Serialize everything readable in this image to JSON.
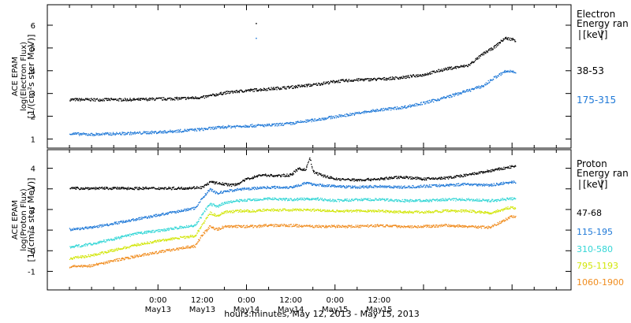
{
  "chart_data": [
    {
      "type": "scatter",
      "panel": "electron",
      "ylabel": [
        "ACE EPAM",
        "log(Electron Flux)",
        "[1/(cm²s ster MeV)]"
      ],
      "ylim": [
        0.6,
        6.9
      ],
      "yticks": [
        "1",
        "2",
        "3",
        "4",
        "5",
        "6"
      ],
      "legend_title": [
        "Electron",
        "Energy ran",
        "[keV]"
      ],
      "series": [
        {
          "name": "38-53",
          "color": "#000000",
          "points": [
            [
              -24,
              2.75
            ],
            [
              -18,
              2.75
            ],
            [
              -12,
              2.75
            ],
            [
              -6,
              2.75
            ],
            [
              0,
              2.78
            ],
            [
              6,
              2.8
            ],
            [
              12,
              2.85
            ],
            [
              18,
              3.05
            ],
            [
              24,
              3.15
            ],
            [
              30,
              3.22
            ],
            [
              36,
              3.3
            ],
            [
              42,
              3.4
            ],
            [
              48,
              3.55
            ],
            [
              54,
              3.62
            ],
            [
              60,
              3.65
            ],
            [
              66,
              3.72
            ],
            [
              72,
              3.85
            ],
            [
              78,
              4.1
            ],
            [
              84,
              4.25
            ],
            [
              88,
              4.75
            ],
            [
              91,
              5.05
            ],
            [
              94,
              5.45
            ],
            [
              96,
              5.4
            ],
            [
              97,
              5.35
            ]
          ]
        },
        {
          "name": "175-315",
          "color": "#1e78d7",
          "points": [
            [
              -24,
              1.25
            ],
            [
              -18,
              1.22
            ],
            [
              -12,
              1.25
            ],
            [
              -6,
              1.28
            ],
            [
              0,
              1.32
            ],
            [
              6,
              1.38
            ],
            [
              12,
              1.45
            ],
            [
              18,
              1.55
            ],
            [
              24,
              1.6
            ],
            [
              30,
              1.62
            ],
            [
              36,
              1.7
            ],
            [
              42,
              1.85
            ],
            [
              48,
              2.0
            ],
            [
              54,
              2.15
            ],
            [
              60,
              2.3
            ],
            [
              66,
              2.4
            ],
            [
              72,
              2.6
            ],
            [
              78,
              2.85
            ],
            [
              84,
              3.15
            ],
            [
              88,
              3.35
            ],
            [
              91,
              3.7
            ],
            [
              94,
              3.98
            ],
            [
              96,
              4.0
            ],
            [
              97,
              3.97
            ]
          ]
        }
      ],
      "annotations": [
        [
          26.5,
          6.1,
          "#000000"
        ],
        [
          26.5,
          5.45,
          "#1e78d7"
        ]
      ]
    },
    {
      "type": "scatter",
      "panel": "proton",
      "ylabel": [
        "ACE EPAM",
        "log(Proton Flux)",
        "[1/(cm²s ster MeV)]"
      ],
      "ylim": [
        -1.9,
        4.9
      ],
      "yticks": [
        "-1",
        "0",
        "1",
        "2",
        "3",
        "4"
      ],
      "legend_title": [
        "Proton",
        "Energy ran",
        "[keV]"
      ],
      "series": [
        {
          "name": "47-68",
          "color": "#000000",
          "points": [
            [
              -24,
              3.05
            ],
            [
              -18,
              3.05
            ],
            [
              -12,
              3.05
            ],
            [
              -6,
              3.05
            ],
            [
              0,
              3.05
            ],
            [
              6,
              3.05
            ],
            [
              12,
              3.1
            ],
            [
              14,
              3.35
            ],
            [
              16,
              3.3
            ],
            [
              18,
              3.25
            ],
            [
              20,
              3.2
            ],
            [
              22,
              3.3
            ],
            [
              24,
              3.5
            ],
            [
              28,
              3.7
            ],
            [
              32,
              3.65
            ],
            [
              36,
              3.7
            ],
            [
              38,
              4.0
            ],
            [
              40,
              3.95
            ],
            [
              41,
              4.55
            ],
            [
              42,
              3.85
            ],
            [
              44,
              3.7
            ],
            [
              48,
              3.5
            ],
            [
              54,
              3.45
            ],
            [
              60,
              3.5
            ],
            [
              66,
              3.6
            ],
            [
              72,
              3.5
            ],
            [
              78,
              3.55
            ],
            [
              84,
              3.7
            ],
            [
              90,
              3.9
            ],
            [
              96,
              4.1
            ],
            [
              97,
              4.1
            ]
          ]
        },
        {
          "name": "115-195",
          "color": "#1e78d7",
          "points": [
            [
              -24,
              1.05
            ],
            [
              -18,
              1.15
            ],
            [
              -12,
              1.35
            ],
            [
              -6,
              1.55
            ],
            [
              0,
              1.75
            ],
            [
              6,
              1.95
            ],
            [
              10,
              2.1
            ],
            [
              12,
              2.6
            ],
            [
              14,
              3.0
            ],
            [
              16,
              2.8
            ],
            [
              18,
              2.9
            ],
            [
              22,
              3.0
            ],
            [
              26,
              3.05
            ],
            [
              30,
              3.1
            ],
            [
              36,
              3.1
            ],
            [
              40,
              3.3
            ],
            [
              44,
              3.2
            ],
            [
              48,
              3.15
            ],
            [
              54,
              3.1
            ],
            [
              60,
              3.15
            ],
            [
              66,
              3.1
            ],
            [
              72,
              3.15
            ],
            [
              78,
              3.2
            ],
            [
              84,
              3.25
            ],
            [
              90,
              3.2
            ],
            [
              96,
              3.35
            ],
            [
              97,
              3.35
            ]
          ]
        },
        {
          "name": "310-580",
          "color": "#33d6d6",
          "points": [
            [
              -24,
              0.2
            ],
            [
              -18,
              0.35
            ],
            [
              -12,
              0.6
            ],
            [
              -6,
              0.85
            ],
            [
              0,
              1.0
            ],
            [
              6,
              1.15
            ],
            [
              10,
              1.25
            ],
            [
              12,
              1.8
            ],
            [
              14,
              2.3
            ],
            [
              16,
              2.15
            ],
            [
              18,
              2.35
            ],
            [
              22,
              2.45
            ],
            [
              26,
              2.5
            ],
            [
              30,
              2.55
            ],
            [
              36,
              2.5
            ],
            [
              42,
              2.55
            ],
            [
              48,
              2.45
            ],
            [
              54,
              2.5
            ],
            [
              60,
              2.5
            ],
            [
              66,
              2.45
            ],
            [
              72,
              2.45
            ],
            [
              78,
              2.5
            ],
            [
              84,
              2.5
            ],
            [
              90,
              2.45
            ],
            [
              96,
              2.55
            ],
            [
              97,
              2.5
            ]
          ]
        },
        {
          "name": "795-1193",
          "color": "#d2e60a",
          "points": [
            [
              -24,
              -0.35
            ],
            [
              -18,
              -0.2
            ],
            [
              -12,
              0.05
            ],
            [
              -6,
              0.3
            ],
            [
              0,
              0.5
            ],
            [
              6,
              0.65
            ],
            [
              10,
              0.75
            ],
            [
              12,
              1.3
            ],
            [
              14,
              1.85
            ],
            [
              16,
              1.7
            ],
            [
              18,
              1.9
            ],
            [
              22,
              1.95
            ],
            [
              26,
              1.95
            ],
            [
              30,
              2.0
            ],
            [
              36,
              2.0
            ],
            [
              42,
              2.0
            ],
            [
              48,
              1.95
            ],
            [
              54,
              1.95
            ],
            [
              60,
              1.95
            ],
            [
              66,
              1.9
            ],
            [
              72,
              1.9
            ],
            [
              78,
              1.95
            ],
            [
              84,
              1.95
            ],
            [
              90,
              1.85
            ],
            [
              96,
              2.15
            ],
            [
              97,
              2.05
            ]
          ]
        },
        {
          "name": "1060-1900",
          "color": "#f08c1e",
          "points": [
            [
              -24,
              -0.75
            ],
            [
              -18,
              -0.7
            ],
            [
              -12,
              -0.45
            ],
            [
              -6,
              -0.25
            ],
            [
              0,
              -0.05
            ],
            [
              6,
              0.15
            ],
            [
              10,
              0.25
            ],
            [
              12,
              0.8
            ],
            [
              14,
              1.2
            ],
            [
              16,
              1.05
            ],
            [
              18,
              1.2
            ],
            [
              22,
              1.2
            ],
            [
              26,
              1.2
            ],
            [
              30,
              1.25
            ],
            [
              36,
              1.25
            ],
            [
              42,
              1.2
            ],
            [
              48,
              1.2
            ],
            [
              54,
              1.2
            ],
            [
              60,
              1.25
            ],
            [
              66,
              1.2
            ],
            [
              72,
              1.2
            ],
            [
              78,
              1.25
            ],
            [
              84,
              1.2
            ],
            [
              90,
              1.15
            ],
            [
              96,
              1.7
            ],
            [
              97,
              1.65
            ]
          ]
        }
      ]
    }
  ],
  "x_axis": {
    "xlim": [
      -30,
      112
    ],
    "major_ticks": [
      0,
      24,
      48,
      72,
      96
    ],
    "minor_ticks": [
      -24,
      -18,
      -12,
      -6,
      6,
      18,
      30,
      42,
      54,
      66,
      78,
      90,
      102,
      108
    ],
    "tick_labels": [
      {
        "x": 0,
        "time": "0:00",
        "date": "May13"
      },
      {
        "x": 12,
        "time": "12:00",
        "date": "May13"
      },
      {
        "x": 24,
        "time": "0:00",
        "date": "May14"
      },
      {
        "x": 36,
        "time": "12:00",
        "date": "May14"
      },
      {
        "x": 48,
        "time": "0:00",
        "date": "May15"
      },
      {
        "x": 60,
        "time": "12:00",
        "date": "May15"
      }
    ],
    "label": "hours:minutes, May 12, 2013 - May 15, 2013"
  }
}
